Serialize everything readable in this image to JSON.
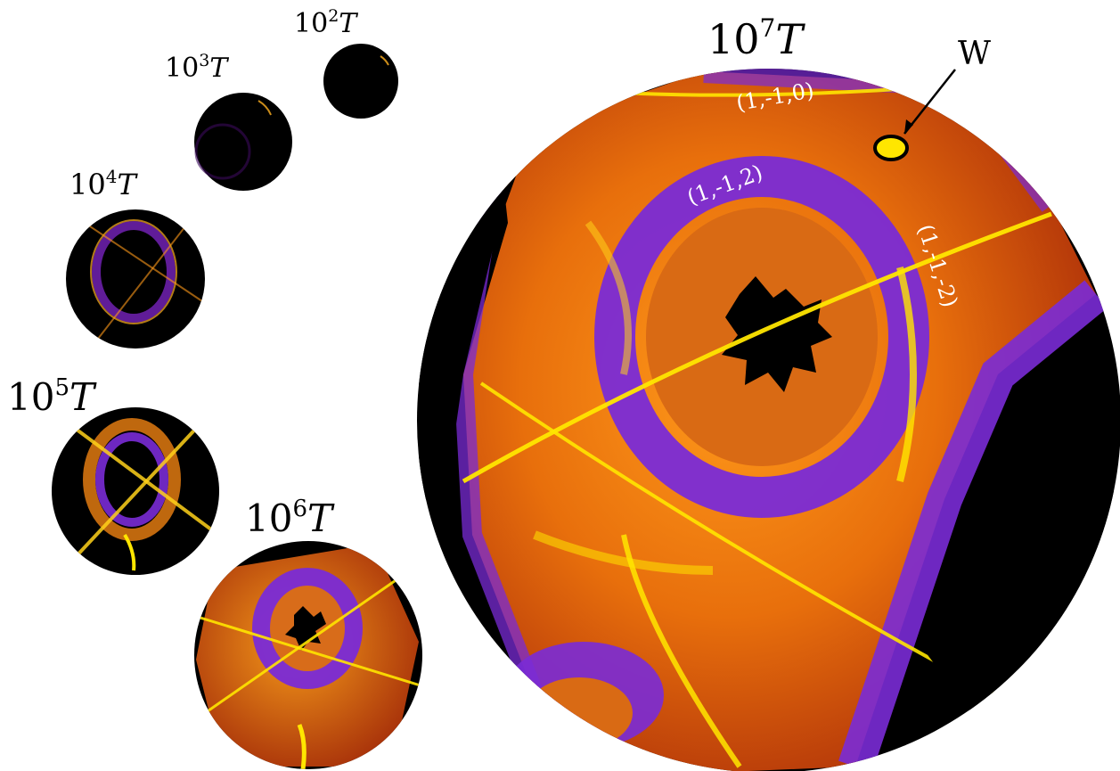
{
  "figure": {
    "panels": [
      {
        "id": "p2",
        "base": "10",
        "exp": "2",
        "var": "T"
      },
      {
        "id": "p3",
        "base": "10",
        "exp": "3",
        "var": "T"
      },
      {
        "id": "p4",
        "base": "10",
        "exp": "4",
        "var": "T"
      },
      {
        "id": "p5",
        "base": "10",
        "exp": "5",
        "var": "T"
      },
      {
        "id": "p6",
        "base": "10",
        "exp": "6",
        "var": "T"
      },
      {
        "id": "p7",
        "base": "10",
        "exp": "7",
        "var": "T"
      }
    ],
    "plane_labels": [
      "(1,-1,0)",
      "(1,-1,2)",
      "(1,-1,-2)"
    ],
    "marker_label": "W",
    "colors": {
      "black": "#000000",
      "purple": "#7a2bd6",
      "orange": "#e07a10",
      "yellow": "#ffe600",
      "marker": "#ffe600"
    }
  }
}
